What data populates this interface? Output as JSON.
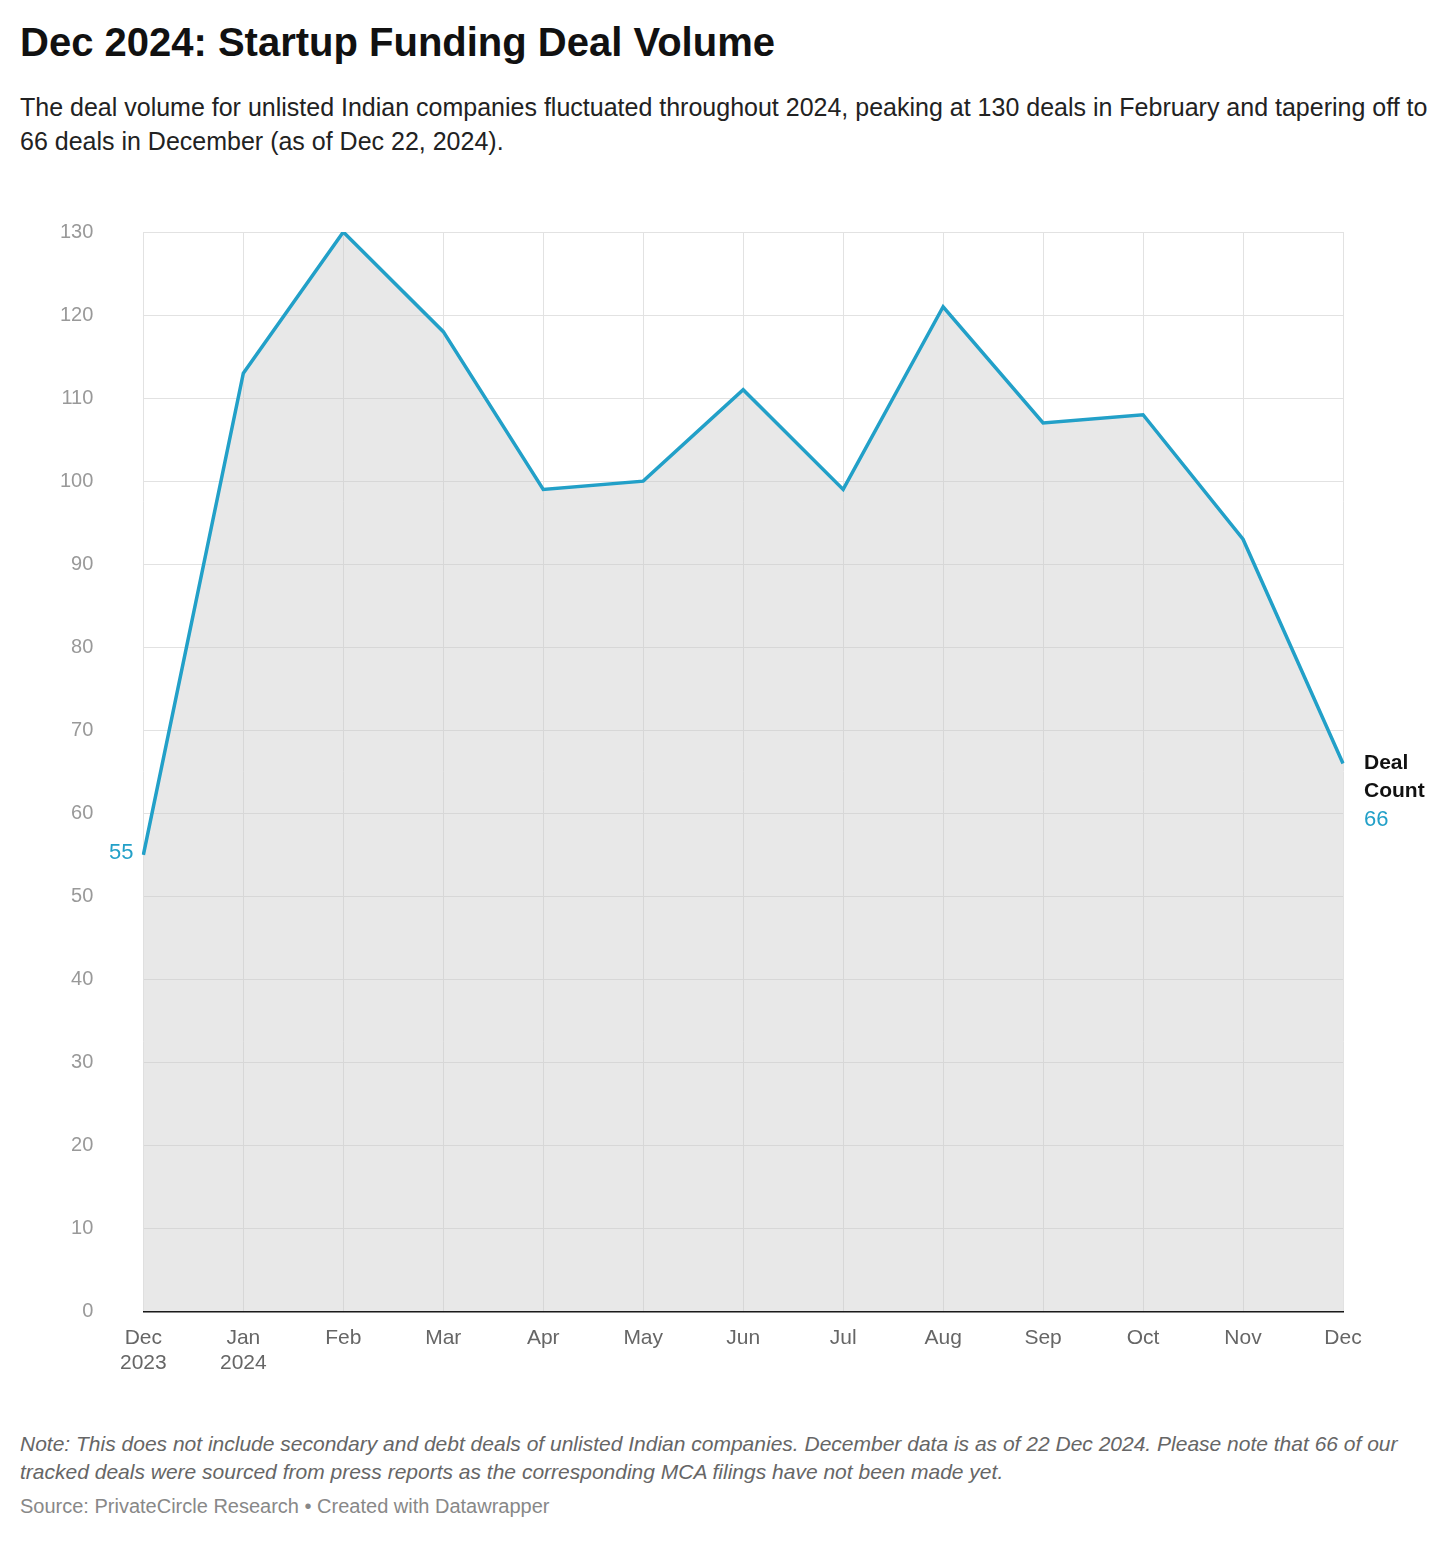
{
  "chart_data": {
    "type": "area",
    "title": "Dec 2024: Startup Funding Deal Volume",
    "subtitle": "The deal volume for unlisted Indian companies fluctuated throughout 2024, peaking at 130 deals in February and tapering off to 66 deals in December (as of Dec 22, 2024).",
    "categories": [
      "Dec 2023",
      "Jan 2024",
      "Feb",
      "Mar",
      "Apr",
      "May",
      "Jun",
      "Jul",
      "Aug",
      "Sep",
      "Oct",
      "Nov",
      "Dec"
    ],
    "series": [
      {
        "name": "Deal Count",
        "color": "#22a0c8",
        "values": [
          55,
          113,
          130,
          118,
          99,
          100,
          111,
          99,
          121,
          107,
          108,
          93,
          66
        ]
      }
    ],
    "ylim": [
      0,
      130
    ],
    "yticks": [
      0,
      10,
      20,
      30,
      40,
      50,
      60,
      70,
      80,
      90,
      100,
      110,
      120,
      130
    ],
    "grid": true,
    "annotations": [
      {
        "x": "Dec 2023",
        "y": 55,
        "text": "55"
      },
      {
        "x": "Dec",
        "y": 66,
        "text": "Deal Count"
      },
      {
        "x": "Dec",
        "y": 66,
        "text": "66"
      }
    ],
    "note": "Note: This does not include secondary and debt deals of unlisted Indian companies. December data is as of 22 Dec 2024. Please note that 66 of our tracked deals were sourced from press reports as the corresponding MCA filings have not been made yet.",
    "source": "Source: PrivateCircle Research • Created with Datawrapper"
  }
}
